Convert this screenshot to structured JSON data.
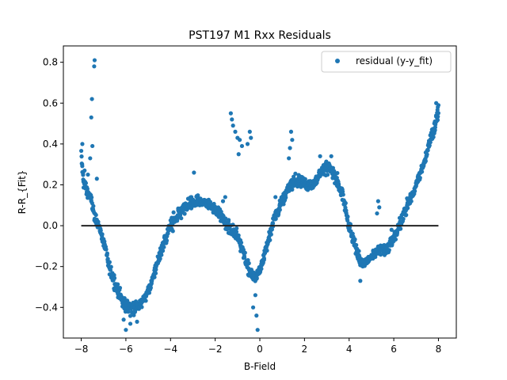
{
  "chart_data": {
    "type": "scatter",
    "title": "PST197 M1 Rxx Residuals",
    "xlabel": "B-Field",
    "ylabel": "R-R_{Fit}",
    "xlim": [
      -8.8,
      8.8
    ],
    "ylim": [
      -0.55,
      0.88
    ],
    "xticks": [
      -8,
      -6,
      -4,
      -2,
      0,
      2,
      4,
      6,
      8
    ],
    "xtick_labels": [
      "−8",
      "−6",
      "−4",
      "−2",
      "0",
      "2",
      "4",
      "6",
      "8"
    ],
    "yticks": [
      -0.4,
      -0.2,
      0.0,
      0.2,
      0.4,
      0.6,
      0.8
    ],
    "ytick_labels": [
      "−0.4",
      "−0.2",
      "0.0",
      "0.2",
      "0.4",
      "0.6",
      "0.8"
    ],
    "grid": false,
    "legend_position": "upper right",
    "series": [
      {
        "name": "residual (y-y_fit)",
        "color": "#1f77b4",
        "marker": "circle",
        "curve": [
          [
            -8.0,
            0.34
          ],
          [
            -7.9,
            0.22
          ],
          [
            -7.8,
            0.18
          ],
          [
            -7.6,
            0.14
          ],
          [
            -7.5,
            0.1
          ],
          [
            -7.4,
            0.04
          ],
          [
            -7.2,
            0.0
          ],
          [
            -7.0,
            -0.08
          ],
          [
            -6.8,
            -0.18
          ],
          [
            -6.6,
            -0.25
          ],
          [
            -6.4,
            -0.3
          ],
          [
            -6.2,
            -0.36
          ],
          [
            -6.0,
            -0.39
          ],
          [
            -5.8,
            -0.4
          ],
          [
            -5.6,
            -0.4
          ],
          [
            -5.4,
            -0.39
          ],
          [
            -5.2,
            -0.36
          ],
          [
            -5.0,
            -0.32
          ],
          [
            -4.8,
            -0.26
          ],
          [
            -4.6,
            -0.18
          ],
          [
            -4.4,
            -0.12
          ],
          [
            -4.2,
            -0.06
          ],
          [
            -4.0,
            0.0
          ],
          [
            -3.8,
            0.03
          ],
          [
            -3.6,
            0.06
          ],
          [
            -3.4,
            0.08
          ],
          [
            -3.2,
            0.1
          ],
          [
            -3.0,
            0.11
          ],
          [
            -2.8,
            0.12
          ],
          [
            -2.6,
            0.12
          ],
          [
            -2.4,
            0.11
          ],
          [
            -2.2,
            0.1
          ],
          [
            -2.0,
            0.08
          ],
          [
            -1.8,
            0.05
          ],
          [
            -1.6,
            0.02
          ],
          [
            -1.4,
            -0.01
          ],
          [
            -1.2,
            -0.03
          ],
          [
            -1.0,
            -0.06
          ],
          [
            -0.8,
            -0.1
          ],
          [
            -0.6,
            -0.18
          ],
          [
            -0.4,
            -0.24
          ],
          [
            -0.2,
            -0.25
          ],
          [
            0.0,
            -0.22
          ],
          [
            0.2,
            -0.14
          ],
          [
            0.4,
            -0.06
          ],
          [
            0.6,
            0.02
          ],
          [
            0.8,
            0.07
          ],
          [
            1.0,
            0.12
          ],
          [
            1.2,
            0.17
          ],
          [
            1.4,
            0.2
          ],
          [
            1.6,
            0.22
          ],
          [
            1.8,
            0.22
          ],
          [
            2.0,
            0.21
          ],
          [
            2.2,
            0.19
          ],
          [
            2.4,
            0.2
          ],
          [
            2.6,
            0.24
          ],
          [
            2.8,
            0.27
          ],
          [
            3.0,
            0.28
          ],
          [
            3.2,
            0.27
          ],
          [
            3.4,
            0.24
          ],
          [
            3.6,
            0.18
          ],
          [
            3.8,
            0.1
          ],
          [
            4.0,
            0.0
          ],
          [
            4.2,
            -0.08
          ],
          [
            4.4,
            -0.14
          ],
          [
            4.6,
            -0.18
          ],
          [
            4.8,
            -0.17
          ],
          [
            5.0,
            -0.14
          ],
          [
            5.2,
            -0.13
          ],
          [
            5.4,
            -0.12
          ],
          [
            5.6,
            -0.12
          ],
          [
            5.8,
            -0.1
          ],
          [
            6.0,
            -0.06
          ],
          [
            6.2,
            -0.02
          ],
          [
            6.4,
            0.04
          ],
          [
            6.6,
            0.1
          ],
          [
            6.8,
            0.15
          ],
          [
            7.0,
            0.2
          ],
          [
            7.2,
            0.26
          ],
          [
            7.4,
            0.32
          ],
          [
            7.6,
            0.4
          ],
          [
            7.8,
            0.47
          ],
          [
            8.0,
            0.56
          ]
        ],
        "outliers": [
          [
            -7.4,
            0.81
          ],
          [
            -7.42,
            0.78
          ],
          [
            -7.52,
            0.62
          ],
          [
            -7.55,
            0.53
          ],
          [
            -7.5,
            0.39
          ],
          [
            -7.6,
            0.33
          ],
          [
            -7.7,
            0.25
          ],
          [
            -7.85,
            0.27
          ],
          [
            -7.95,
            0.4
          ],
          [
            -7.3,
            0.23
          ],
          [
            -1.3,
            0.55
          ],
          [
            -1.25,
            0.52
          ],
          [
            -1.2,
            0.49
          ],
          [
            -1.1,
            0.46
          ],
          [
            -1.0,
            0.43
          ],
          [
            -0.9,
            0.42
          ],
          [
            -0.8,
            0.39
          ],
          [
            -0.95,
            0.35
          ],
          [
            -0.45,
            0.46
          ],
          [
            -0.55,
            0.4
          ],
          [
            -0.4,
            0.43
          ],
          [
            -2.95,
            0.26
          ],
          [
            -1.65,
            0.12
          ],
          [
            -1.55,
            0.14
          ],
          [
            -0.1,
            -0.51
          ],
          [
            -0.15,
            -0.44
          ],
          [
            -0.3,
            -0.4
          ],
          [
            -0.2,
            -0.34
          ],
          [
            1.4,
            0.46
          ],
          [
            1.45,
            0.42
          ],
          [
            1.35,
            0.38
          ],
          [
            1.3,
            0.33
          ],
          [
            5.3,
            0.12
          ],
          [
            5.35,
            0.09
          ],
          [
            5.25,
            0.06
          ],
          [
            5.9,
            -0.02
          ],
          [
            4.5,
            -0.27
          ],
          [
            -6.0,
            -0.51
          ],
          [
            -5.8,
            -0.48
          ],
          [
            -5.5,
            -0.47
          ],
          [
            -6.1,
            -0.46
          ],
          [
            0.7,
            0.14
          ],
          [
            2.7,
            0.34
          ],
          [
            3.2,
            0.34
          ],
          [
            7.9,
            0.6
          ],
          [
            8.0,
            0.59
          ]
        ]
      },
      {
        "name": "",
        "type": "line",
        "color": "#222222",
        "x": [
          -8.0,
          8.0
        ],
        "y": [
          0.0,
          0.0
        ]
      }
    ]
  }
}
